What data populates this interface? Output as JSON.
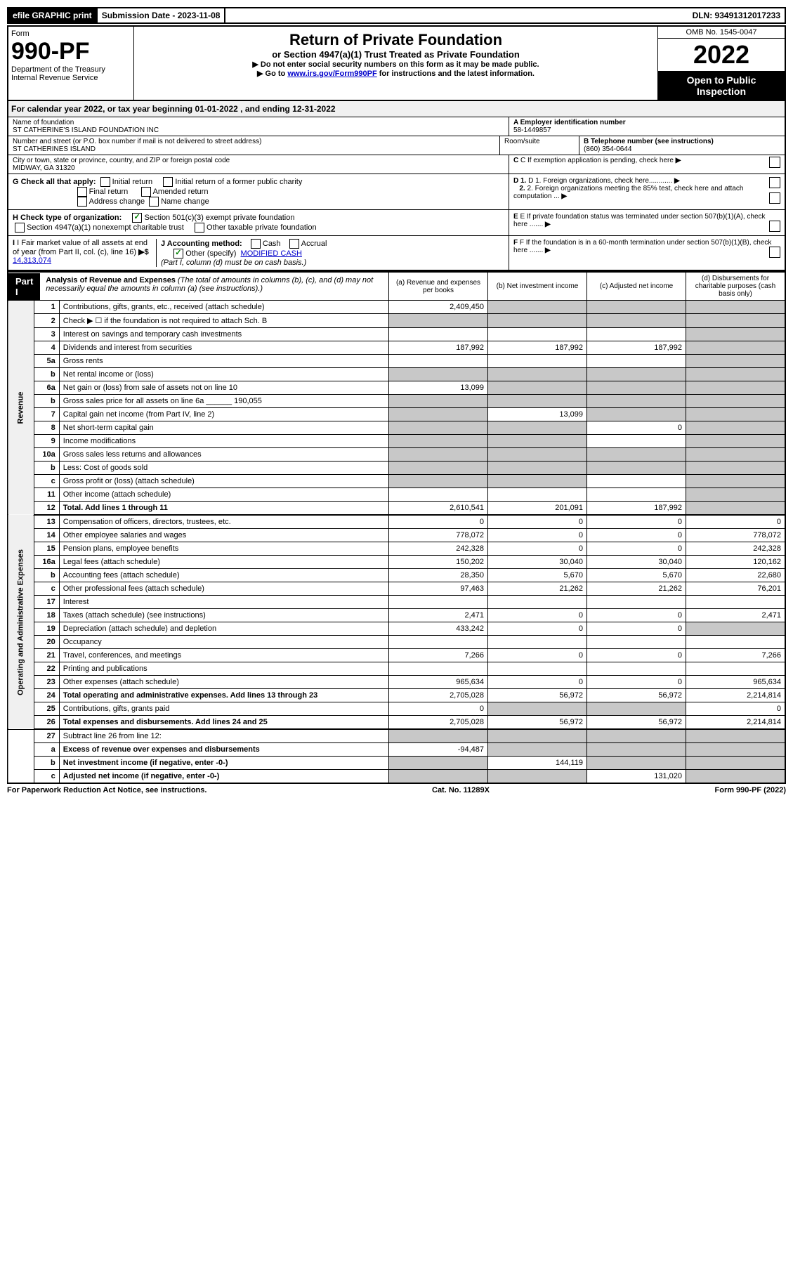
{
  "topbar": {
    "efile": "efile GRAPHIC print",
    "submission_label": "Submission Date - 2023-11-08",
    "dln": "DLN: 93491312017233"
  },
  "header": {
    "form_word": "Form",
    "form_number": "990-PF",
    "dept": "Department of the Treasury",
    "irs": "Internal Revenue Service",
    "title": "Return of Private Foundation",
    "subtitle": "or Section 4947(a)(1) Trust Treated as Private Foundation",
    "instr1": "▶ Do not enter social security numbers on this form as it may be made public.",
    "instr2_prefix": "▶ Go to ",
    "instr2_link": "www.irs.gov/Form990PF",
    "instr2_suffix": " for instructions and the latest information.",
    "omb": "OMB No. 1545-0047",
    "year": "2022",
    "open": "Open to Public Inspection"
  },
  "calendar": "For calendar year 2022, or tax year beginning 01-01-2022                , and ending 12-31-2022",
  "info": {
    "name_label": "Name of foundation",
    "name": "ST CATHERINE'S ISLAND FOUNDATION INC",
    "ein_label": "A Employer identification number",
    "ein": "58-1449857",
    "address_label": "Number and street (or P.O. box number if mail is not delivered to street address)",
    "address": "ST CATHERINES ISLAND",
    "room_label": "Room/suite",
    "phone_label": "B Telephone number (see instructions)",
    "phone": "(860) 354-0644",
    "city_label": "City or town, state or province, country, and ZIP or foreign postal code",
    "city": "MIDWAY, GA  31320",
    "c_label": "C If exemption application is pending, check here"
  },
  "checks": {
    "g_label": "G Check all that apply:",
    "g1": "Initial return",
    "g2": "Initial return of a former public charity",
    "g3": "Final return",
    "g4": "Amended return",
    "g5": "Address change",
    "g6": "Name change",
    "d1": "D 1. Foreign organizations, check here............",
    "d2": "2. Foreign organizations meeting the 85% test, check here and attach computation ...",
    "h_label": "H Check type of organization:",
    "h1": "Section 501(c)(3) exempt private foundation",
    "h2": "Section 4947(a)(1) nonexempt charitable trust",
    "h3": "Other taxable private foundation",
    "e_label": "E  If private foundation status was terminated under section 507(b)(1)(A), check here .......",
    "i_label": "I Fair market value of all assets at end of year (from Part II, col. (c), line 16)",
    "i_value": "14,313,074",
    "j_label": "J Accounting method:",
    "j1": "Cash",
    "j2": "Accrual",
    "j3": "Other (specify)",
    "j3_val": "MODIFIED CASH",
    "j_note": "(Part I, column (d) must be on cash basis.)",
    "f_label": "F  If the foundation is in a 60-month termination under section 507(b)(1)(B), check here ......."
  },
  "part1": {
    "label": "Part I",
    "title": "Analysis of Revenue and Expenses",
    "note": "(The total of amounts in columns (b), (c), and (d) may not necessarily equal the amounts in column (a) (see instructions).)",
    "col_a": "(a) Revenue and expenses per books",
    "col_b": "(b) Net investment income",
    "col_c": "(c) Adjusted net income",
    "col_d": "(d) Disbursements for charitable purposes (cash basis only)"
  },
  "sidelabels": {
    "revenue": "Revenue",
    "expenses": "Operating and Administrative Expenses"
  },
  "rows": [
    {
      "n": "1",
      "desc": "Contributions, gifts, grants, etc., received (attach schedule)",
      "a": "2,409,450",
      "b": "s",
      "c": "s",
      "d": "s"
    },
    {
      "n": "2",
      "desc": "Check ▶ ☐ if the foundation is not required to attach Sch. B",
      "a": "s",
      "b": "s",
      "c": "s",
      "d": "s"
    },
    {
      "n": "3",
      "desc": "Interest on savings and temporary cash investments",
      "a": "",
      "b": "",
      "c": "",
      "d": "s"
    },
    {
      "n": "4",
      "desc": "Dividends and interest from securities",
      "a": "187,992",
      "b": "187,992",
      "c": "187,992",
      "d": "s"
    },
    {
      "n": "5a",
      "desc": "Gross rents",
      "a": "",
      "b": "",
      "c": "",
      "d": "s"
    },
    {
      "n": "b",
      "desc": "Net rental income or (loss)",
      "a": "s",
      "b": "s",
      "c": "s",
      "d": "s"
    },
    {
      "n": "6a",
      "desc": "Net gain or (loss) from sale of assets not on line 10",
      "a": "13,099",
      "b": "s",
      "c": "s",
      "d": "s"
    },
    {
      "n": "b",
      "desc": "Gross sales price for all assets on line 6a ______ 190,055",
      "a": "s",
      "b": "s",
      "c": "s",
      "d": "s"
    },
    {
      "n": "7",
      "desc": "Capital gain net income (from Part IV, line 2)",
      "a": "s",
      "b": "13,099",
      "c": "s",
      "d": "s"
    },
    {
      "n": "8",
      "desc": "Net short-term capital gain",
      "a": "s",
      "b": "s",
      "c": "0",
      "d": "s"
    },
    {
      "n": "9",
      "desc": "Income modifications",
      "a": "s",
      "b": "s",
      "c": "",
      "d": "s"
    },
    {
      "n": "10a",
      "desc": "Gross sales less returns and allowances",
      "a": "s",
      "b": "s",
      "c": "s",
      "d": "s"
    },
    {
      "n": "b",
      "desc": "Less: Cost of goods sold",
      "a": "s",
      "b": "s",
      "c": "s",
      "d": "s"
    },
    {
      "n": "c",
      "desc": "Gross profit or (loss) (attach schedule)",
      "a": "s",
      "b": "s",
      "c": "",
      "d": "s"
    },
    {
      "n": "11",
      "desc": "Other income (attach schedule)",
      "a": "",
      "b": "",
      "c": "",
      "d": "s"
    },
    {
      "n": "12",
      "desc": "Total. Add lines 1 through 11",
      "bold": true,
      "a": "2,610,541",
      "b": "201,091",
      "c": "187,992",
      "d": "s"
    },
    {
      "n": "13",
      "desc": "Compensation of officers, directors, trustees, etc.",
      "a": "0",
      "b": "0",
      "c": "0",
      "d": "0"
    },
    {
      "n": "14",
      "desc": "Other employee salaries and wages",
      "a": "778,072",
      "b": "0",
      "c": "0",
      "d": "778,072"
    },
    {
      "n": "15",
      "desc": "Pension plans, employee benefits",
      "a": "242,328",
      "b": "0",
      "c": "0",
      "d": "242,328"
    },
    {
      "n": "16a",
      "desc": "Legal fees (attach schedule)",
      "a": "150,202",
      "b": "30,040",
      "c": "30,040",
      "d": "120,162"
    },
    {
      "n": "b",
      "desc": "Accounting fees (attach schedule)",
      "a": "28,350",
      "b": "5,670",
      "c": "5,670",
      "d": "22,680"
    },
    {
      "n": "c",
      "desc": "Other professional fees (attach schedule)",
      "a": "97,463",
      "b": "21,262",
      "c": "21,262",
      "d": "76,201"
    },
    {
      "n": "17",
      "desc": "Interest",
      "a": "",
      "b": "",
      "c": "",
      "d": ""
    },
    {
      "n": "18",
      "desc": "Taxes (attach schedule) (see instructions)",
      "a": "2,471",
      "b": "0",
      "c": "0",
      "d": "2,471"
    },
    {
      "n": "19",
      "desc": "Depreciation (attach schedule) and depletion",
      "a": "433,242",
      "b": "0",
      "c": "0",
      "d": "s"
    },
    {
      "n": "20",
      "desc": "Occupancy",
      "a": "",
      "b": "",
      "c": "",
      "d": ""
    },
    {
      "n": "21",
      "desc": "Travel, conferences, and meetings",
      "a": "7,266",
      "b": "0",
      "c": "0",
      "d": "7,266"
    },
    {
      "n": "22",
      "desc": "Printing and publications",
      "a": "",
      "b": "",
      "c": "",
      "d": ""
    },
    {
      "n": "23",
      "desc": "Other expenses (attach schedule)",
      "a": "965,634",
      "b": "0",
      "c": "0",
      "d": "965,634"
    },
    {
      "n": "24",
      "desc": "Total operating and administrative expenses. Add lines 13 through 23",
      "bold": true,
      "a": "2,705,028",
      "b": "56,972",
      "c": "56,972",
      "d": "2,214,814"
    },
    {
      "n": "25",
      "desc": "Contributions, gifts, grants paid",
      "a": "0",
      "b": "s",
      "c": "s",
      "d": "0"
    },
    {
      "n": "26",
      "desc": "Total expenses and disbursements. Add lines 24 and 25",
      "bold": true,
      "a": "2,705,028",
      "b": "56,972",
      "c": "56,972",
      "d": "2,214,814"
    },
    {
      "n": "27",
      "desc": "Subtract line 26 from line 12:",
      "a": "s",
      "b": "s",
      "c": "s",
      "d": "s"
    },
    {
      "n": "a",
      "desc": "Excess of revenue over expenses and disbursements",
      "bold": true,
      "a": "-94,487",
      "b": "s",
      "c": "s",
      "d": "s"
    },
    {
      "n": "b",
      "desc": "Net investment income (if negative, enter -0-)",
      "bold": true,
      "a": "s",
      "b": "144,119",
      "c": "s",
      "d": "s"
    },
    {
      "n": "c",
      "desc": "Adjusted net income (if negative, enter -0-)",
      "bold": true,
      "a": "s",
      "b": "s",
      "c": "131,020",
      "d": "s"
    }
  ],
  "footer": {
    "left": "For Paperwork Reduction Act Notice, see instructions.",
    "center": "Cat. No. 11289X",
    "right": "Form 990-PF (2022)"
  }
}
